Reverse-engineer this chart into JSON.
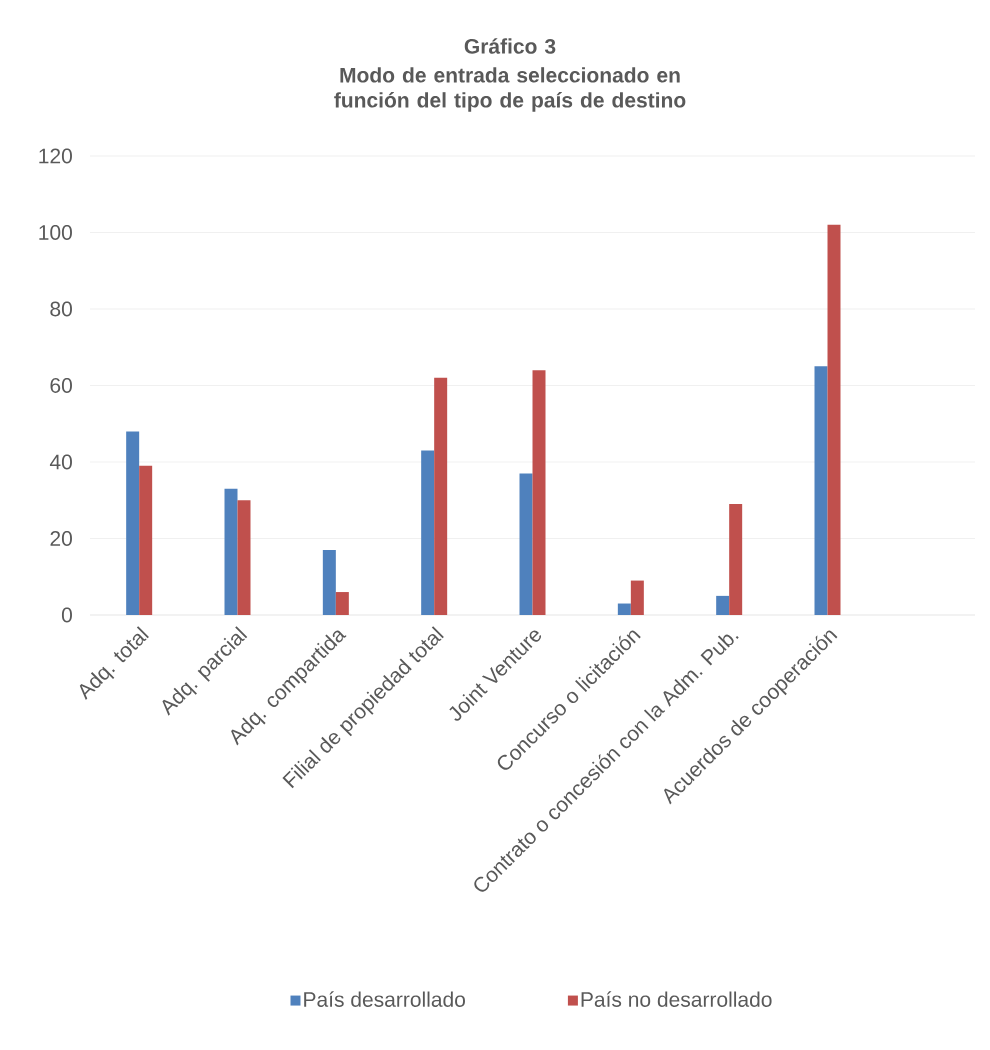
{
  "chart_data": {
    "type": "bar",
    "title": "Gráfico 3",
    "subtitle": "Modo de entrada seleccionado en función del tipo de país de destino",
    "categories": [
      "Adq. total",
      "Adq. parcial",
      "Adq. compartida",
      "Filial de propiedad total",
      "Joint Venture",
      "Concurso o licitación",
      "Contrato o concesión con la Adm. Pub.",
      "Acuerdos de cooperación",
      null
    ],
    "series": [
      {
        "name": "País desarrollado",
        "color": "#4f81bd",
        "values": [
          48,
          33,
          17,
          43,
          37,
          3,
          5,
          65,
          null
        ]
      },
      {
        "name": "País no desarrollado",
        "color": "#c0504d",
        "values": [
          39,
          30,
          6,
          62,
          64,
          9,
          29,
          102,
          null
        ]
      }
    ],
    "ylim": [
      0,
      120
    ],
    "yticks": [
      0,
      20,
      40,
      60,
      80,
      100,
      120
    ],
    "grid": "y",
    "legend": "bottom"
  }
}
